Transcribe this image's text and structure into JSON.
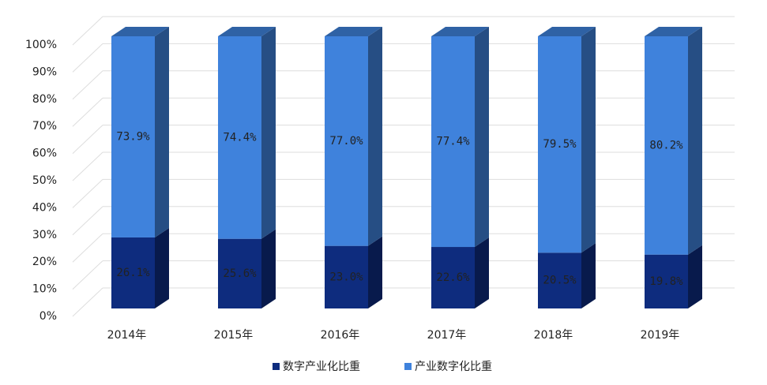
{
  "chart_data": {
    "type": "bar3d_stacked",
    "categories": [
      "2014年",
      "2015年",
      "2016年",
      "2017年",
      "2018年",
      "2019年"
    ],
    "series": [
      {
        "name": "数字产业化比重",
        "color": "#0e2c7e",
        "values": [
          26.1,
          25.6,
          23.0,
          22.6,
          20.5,
          19.8
        ],
        "value_labels": [
          "26.1%",
          "25.6%",
          "23.0%",
          "22.6%",
          "20.5%",
          "19.8%"
        ]
      },
      {
        "name": "产业数字化比重",
        "color": "#3f82dc",
        "values": [
          73.9,
          74.4,
          77.0,
          77.4,
          79.5,
          80.2
        ],
        "value_labels": [
          "73.9%",
          "74.4%",
          "77.0%",
          "77.4%",
          "79.5%",
          "80.2%"
        ]
      }
    ],
    "ylim": [
      0,
      100
    ],
    "yticks": [
      {
        "value": 0,
        "label": "0%"
      },
      {
        "value": 10,
        "label": "10%"
      },
      {
        "value": 20,
        "label": "20%"
      },
      {
        "value": 30,
        "label": "30%"
      },
      {
        "value": 40,
        "label": "40%"
      },
      {
        "value": 50,
        "label": "50%"
      },
      {
        "value": 60,
        "label": "60%"
      },
      {
        "value": 70,
        "label": "70%"
      },
      {
        "value": 80,
        "label": "80%"
      },
      {
        "value": 90,
        "label": "90%"
      },
      {
        "value": 100,
        "label": "100%"
      }
    ],
    "grid": true
  }
}
